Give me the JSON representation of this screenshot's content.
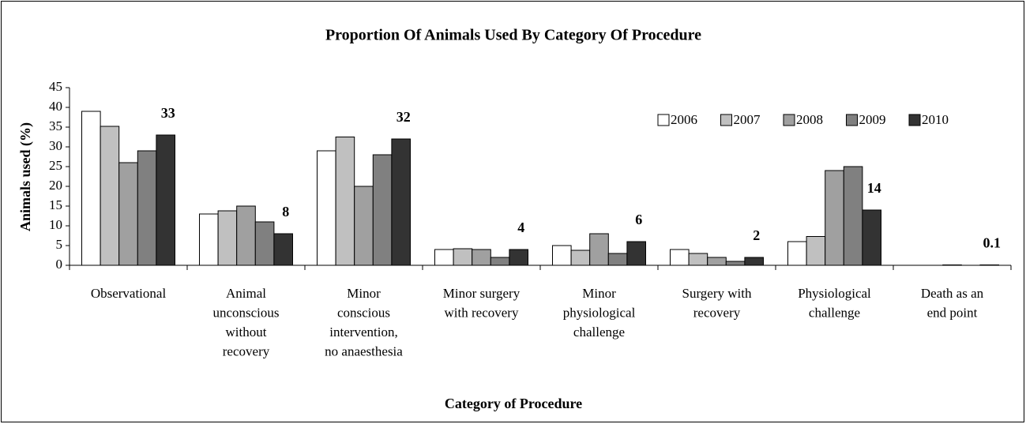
{
  "chart_data": {
    "type": "bar",
    "title": "Proportion Of Animals Used By Category Of Procedure",
    "x_label": "Category of Procedure",
    "y_label": "Animals used (%)",
    "categories": [
      [
        "Observational"
      ],
      [
        "Animal",
        "unconscious",
        "without",
        "recovery"
      ],
      [
        "Minor",
        "conscious",
        "intervention,",
        "no anaesthesia"
      ],
      [
        "Minor surgery",
        "with recovery"
      ],
      [
        "Minor",
        "physiological",
        "challenge"
      ],
      [
        "Surgery with",
        "recovery"
      ],
      [
        "Physiological",
        "challenge"
      ],
      [
        "Death as an",
        "end point"
      ]
    ],
    "series": [
      {
        "name": "2006",
        "color": "#ffffff",
        "values": [
          39,
          13,
          29,
          4,
          5,
          4,
          6,
          0
        ]
      },
      {
        "name": "2007",
        "color": "#c0c0c0",
        "values": [
          35.2,
          13.8,
          32.5,
          4.2,
          3.8,
          3,
          7.3,
          0
        ]
      },
      {
        "name": "2008",
        "color": "#a0a0a0",
        "values": [
          26,
          15,
          20,
          4,
          8,
          2,
          24,
          0.1
        ]
      },
      {
        "name": "2009",
        "color": "#808080",
        "values": [
          29,
          11,
          28,
          2,
          3,
          1,
          25,
          0
        ]
      },
      {
        "name": "2010",
        "color": "#333333",
        "values": [
          33,
          8,
          32,
          4,
          6,
          2,
          14,
          0.1
        ]
      }
    ],
    "labeled_series": 4,
    "ylim": [
      0,
      45
    ],
    "yticks": [
      0,
      5,
      10,
      15,
      20,
      25,
      30,
      35,
      40,
      45
    ],
    "legend": "upper right"
  }
}
